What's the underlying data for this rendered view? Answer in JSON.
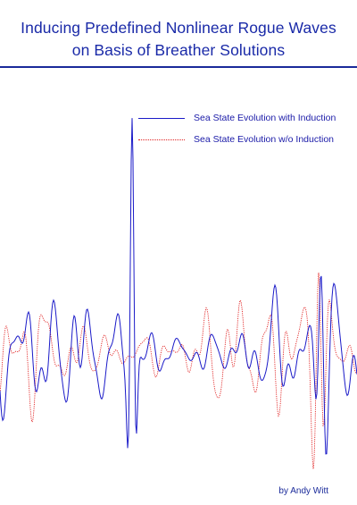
{
  "title": {
    "line1": "Inducing Predefined Nonlinear Rogue Waves",
    "line2": "on Basis of Breather Solutions"
  },
  "legend": {
    "with_induction": "Sea State Evolution with Induction",
    "without_induction": "Sea State Evolution w/o Induction"
  },
  "author": "by Andy Witt",
  "colors": {
    "title": "#1a2aa8",
    "with_induction": "#1a1ac8",
    "without_induction": "#e02020"
  }
}
